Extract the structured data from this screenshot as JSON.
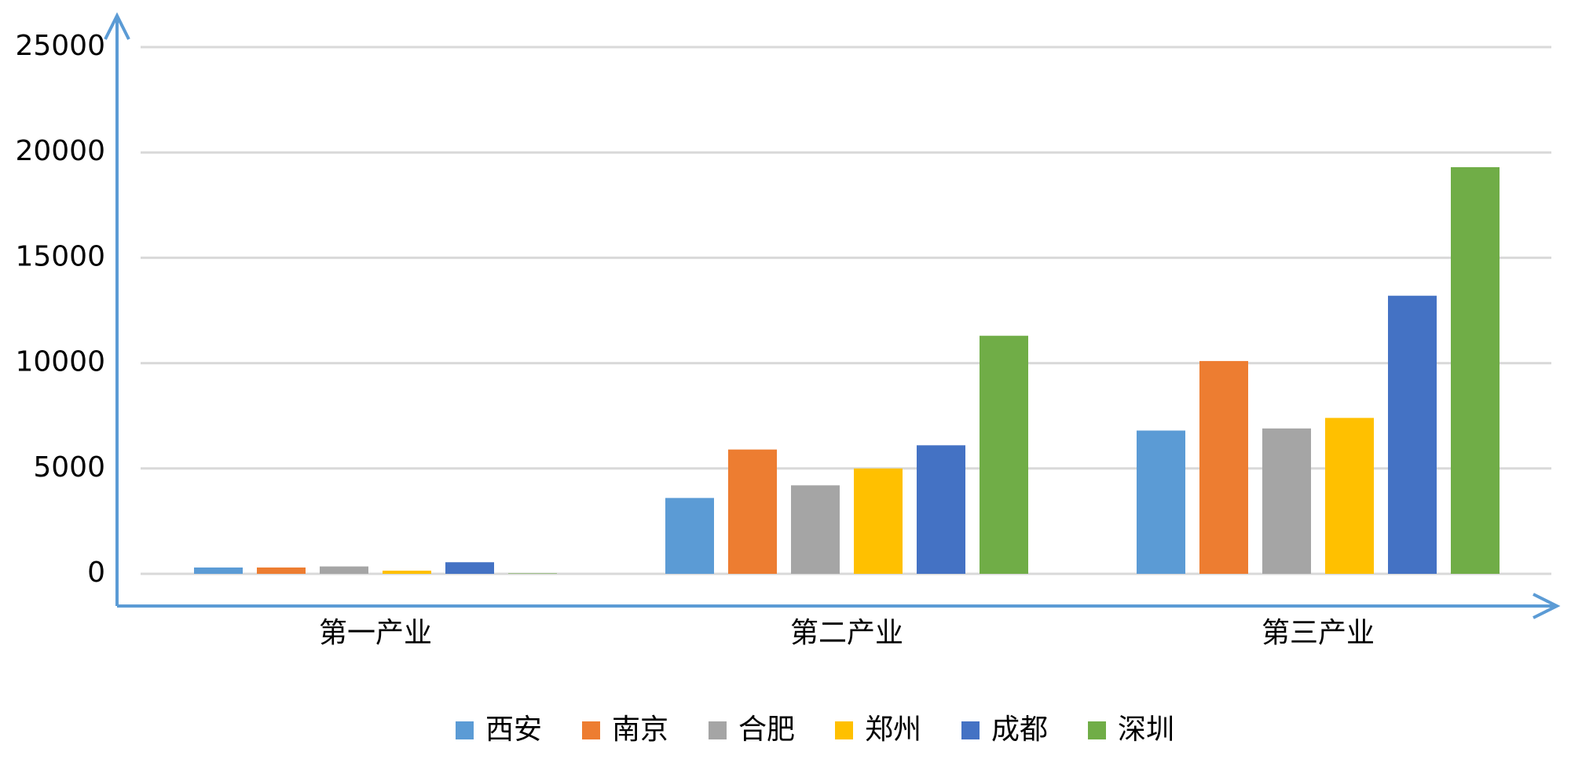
{
  "chart_data": {
    "type": "bar",
    "categories": [
      "第一产业",
      "第二产业",
      "第三产业"
    ],
    "series": [
      {
        "name": "西安",
        "color": "#5b9bd5",
        "values": [
          300,
          3600,
          6800
        ]
      },
      {
        "name": "南京",
        "color": "#ed7d31",
        "values": [
          300,
          5900,
          10100
        ]
      },
      {
        "name": "合肥",
        "color": "#a5a5a5",
        "values": [
          350,
          4200,
          6900
        ]
      },
      {
        "name": "郑州",
        "color": "#ffc000",
        "values": [
          150,
          5000,
          7400
        ]
      },
      {
        "name": "成都",
        "color": "#4472c4",
        "values": [
          550,
          6100,
          13200
        ]
      },
      {
        "name": "深圳",
        "color": "#70ad47",
        "values": [
          20,
          11300,
          19300
        ]
      }
    ],
    "ylim": [
      0,
      25000
    ],
    "yticks": [
      0,
      5000,
      10000,
      15000,
      20000,
      25000
    ],
    "grid": true,
    "legend": "bottom"
  }
}
